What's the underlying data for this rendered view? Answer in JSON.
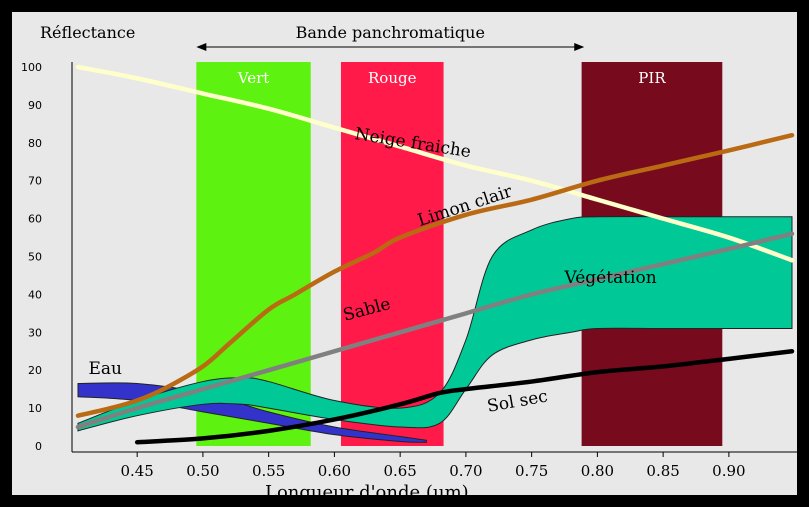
{
  "chart_data": {
    "type": "line",
    "ylabel": "Réflectance",
    "xlabel": "Longueur d'onde (µm)",
    "xlim": [
      0.405,
      0.948
    ],
    "ylim": [
      0,
      100
    ],
    "x_ticks": [
      "0.45",
      "0.50",
      "0.55",
      "0.60",
      "0.65",
      "0.70",
      "0.75",
      "0.80",
      "0.85",
      "0.90"
    ],
    "y_ticks": [
      "0",
      "10",
      "20",
      "30",
      "40",
      "50",
      "60",
      "70",
      "80",
      "90",
      "100"
    ],
    "panchromatic": {
      "label": "Bande panchromatique",
      "range": [
        0.495,
        0.79
      ]
    },
    "bands": [
      {
        "label": "Vert",
        "range": [
          0.495,
          0.582
        ],
        "color": "#5df20f"
      },
      {
        "label": "Rouge",
        "range": [
          0.605,
          0.683
        ],
        "color": "#ff1a4a"
      },
      {
        "label": "PIR",
        "range": [
          0.788,
          0.895
        ],
        "color": "#780a1e"
      }
    ],
    "series": [
      {
        "name": "Neige fraiche",
        "color": "#ffffcc",
        "label_x": 0.615,
        "label_y": 81,
        "label_angle": 9,
        "x": [
          0.405,
          0.45,
          0.5,
          0.55,
          0.6,
          0.65,
          0.7,
          0.75,
          0.8,
          0.85,
          0.9,
          0.948
        ],
        "y": [
          100,
          97,
          93,
          89,
          84,
          79,
          74,
          70,
          65,
          60,
          55,
          49
        ]
      },
      {
        "name": "Limon clair",
        "color": "#b96a12",
        "label_x": 0.665,
        "label_y": 58,
        "label_angle": -18,
        "x": [
          0.405,
          0.43,
          0.45,
          0.47,
          0.5,
          0.52,
          0.55,
          0.57,
          0.6,
          0.63,
          0.65,
          0.7,
          0.75,
          0.8,
          0.85,
          0.9,
          0.948
        ],
        "y": [
          8,
          10,
          12,
          15,
          21,
          27,
          36,
          40,
          46,
          51,
          55,
          61,
          65,
          70,
          74,
          78,
          82
        ]
      },
      {
        "name": "Sable",
        "color": "#808080",
        "label_x": 0.608,
        "label_y": 33,
        "label_angle": -15,
        "x": [
          0.405,
          0.45,
          0.5,
          0.55,
          0.6,
          0.65,
          0.7,
          0.75,
          0.8,
          0.85,
          0.9,
          0.948
        ],
        "y": [
          5,
          10,
          15,
          20,
          25,
          30,
          35,
          40,
          44,
          48,
          52,
          56
        ]
      },
      {
        "name": "Sol sec",
        "color": "#000000",
        "label_x": 0.717,
        "label_y": 9,
        "label_angle": -10,
        "x": [
          0.45,
          0.5,
          0.55,
          0.6,
          0.65,
          0.68,
          0.7,
          0.75,
          0.8,
          0.85,
          0.9,
          0.948
        ],
        "y": [
          1,
          2,
          4,
          7,
          11,
          14,
          15,
          17,
          19.5,
          21,
          23,
          25
        ]
      }
    ],
    "areas": [
      {
        "name": "Eau",
        "color": "#3333cc",
        "label_x": 0.413,
        "label_y": 19,
        "label_angle": 0,
        "x": [
          0.405,
          0.45,
          0.5,
          0.55,
          0.6,
          0.65,
          0.67
        ],
        "upper": [
          16.5,
          16.5,
          14,
          9,
          5,
          2.5,
          1.5
        ],
        "lower": [
          13,
          12,
          9,
          6,
          3,
          1.2,
          1
        ]
      },
      {
        "name": "Végétation",
        "color": "#00c896",
        "label_x": 0.775,
        "label_y": 43,
        "label_angle": 0,
        "x": [
          0.405,
          0.45,
          0.5,
          0.53,
          0.55,
          0.6,
          0.65,
          0.68,
          0.7,
          0.72,
          0.75,
          0.78,
          0.8,
          0.85,
          0.9,
          0.948
        ],
        "upper": [
          6,
          12,
          17,
          18,
          17,
          12,
          10,
          14,
          28,
          50,
          57,
          60,
          60.5,
          60.5,
          60.5,
          60.5
        ],
        "lower": [
          4,
          8,
          11,
          11,
          10,
          7,
          5,
          6,
          15,
          24,
          28,
          30,
          31,
          31,
          31,
          31
        ]
      }
    ]
  }
}
